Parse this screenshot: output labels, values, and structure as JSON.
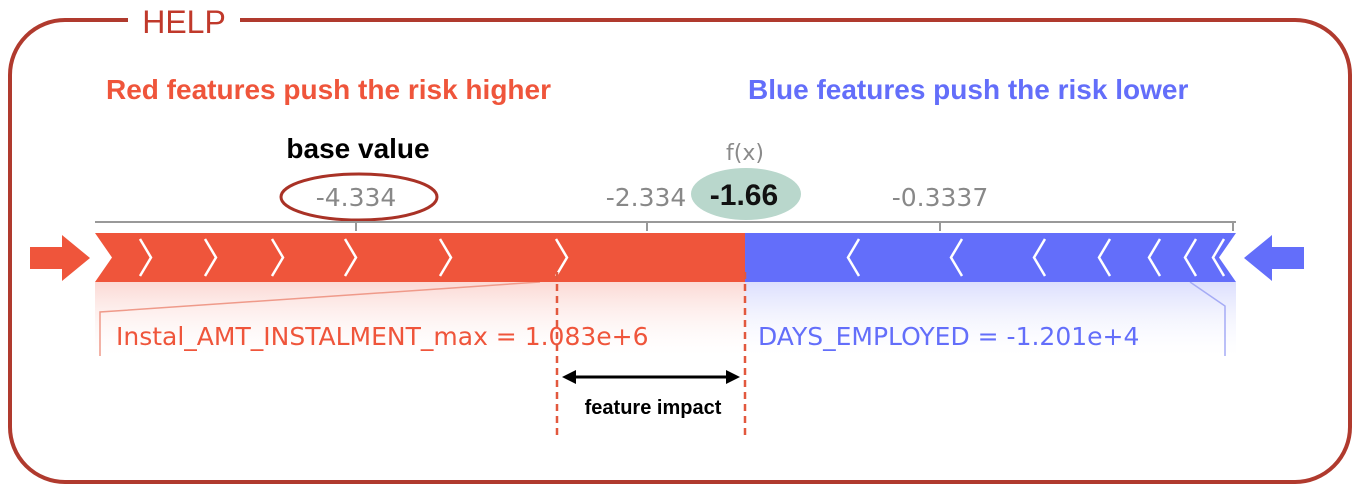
{
  "help_title": "HELP",
  "red_caption": "Red features push the risk higher",
  "blue_caption": "Blue features push the risk lower",
  "base_value_label": "base value",
  "fx_label": "f(x)",
  "fx_value": "-1.66",
  "axis_ticks": [
    "-4.334",
    "-2.334",
    "-0.3337"
  ],
  "red_feature": "Instal_AMT_INSTALMENT_max = 1.083e+6",
  "blue_feature": "DAYS_EMPLOYED = -1.201e+4",
  "feature_impact_label": "feature impact",
  "colors": {
    "red": "#ef553b",
    "blue": "#636efa",
    "frame": "#c0392b",
    "highlight": "#b9d7cc"
  },
  "chart_data": {
    "type": "force_plot",
    "base_value": -4.334,
    "output_value": -1.66,
    "axis_ticks": [
      -4.334,
      -2.334,
      -0.3337
    ],
    "features": [
      {
        "name": "Instal_AMT_INSTALMENT_max",
        "value": "1.083e+6",
        "direction": "higher"
      },
      {
        "name": "DAYS_EMPLOYED",
        "value": "-1.201e+4",
        "direction": "lower"
      }
    ]
  }
}
